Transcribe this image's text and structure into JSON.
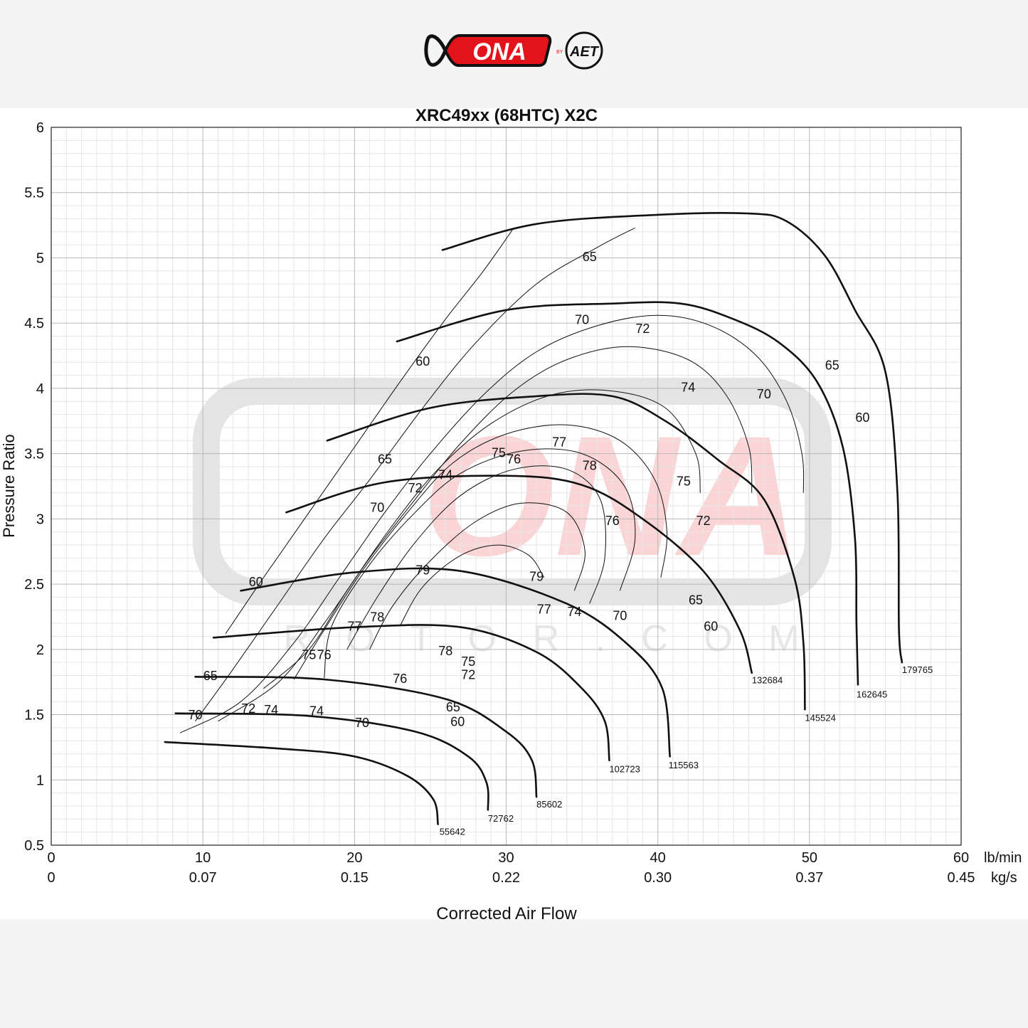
{
  "brand": {
    "logo_text": "ONA",
    "logo_by": "BY",
    "logo_partner": "AET",
    "watermark_text": "ONA",
    "watermark_sub": "R O T O R . C O M",
    "colors": {
      "accent": "#e3131b",
      "dark": "#111111"
    }
  },
  "chart_data": {
    "type": "line",
    "title": "XRC49xx (68HTC) X2C",
    "xlabel": "Corrected Air Flow",
    "ylabel": "Pressure Ratio",
    "xlim": [
      0,
      60
    ],
    "ylim": [
      0.5,
      6
    ],
    "x_unit": "lb/min",
    "x2_unit": "kg/s",
    "x_ticks": [
      0,
      10,
      20,
      30,
      40,
      50,
      60
    ],
    "x2_ticks": [
      "0",
      "0.07",
      "0.15",
      "0.22",
      "0.30",
      "0.37",
      "0.45"
    ],
    "y_ticks": [
      "0.5",
      "1",
      "1.5",
      "2",
      "2.5",
      "3",
      "3.5",
      "4",
      "4.5",
      "5",
      "5.5",
      "6"
    ],
    "grid": true,
    "speed_lines": [
      {
        "label": "55642",
        "points": [
          [
            7.5,
            1.29
          ],
          [
            15,
            1.24
          ],
          [
            20,
            1.18
          ],
          [
            23.5,
            1.03
          ],
          [
            25.2,
            0.85
          ],
          [
            25.5,
            0.66
          ]
        ]
      },
      {
        "label": "72762",
        "points": [
          [
            8.2,
            1.51
          ],
          [
            17,
            1.49
          ],
          [
            24,
            1.37
          ],
          [
            27.5,
            1.18
          ],
          [
            28.7,
            0.98
          ],
          [
            28.8,
            0.77
          ]
        ]
      },
      {
        "label": "85602",
        "points": [
          [
            9.5,
            1.79
          ],
          [
            18,
            1.77
          ],
          [
            26,
            1.62
          ],
          [
            30,
            1.37
          ],
          [
            31.7,
            1.15
          ],
          [
            32,
            0.87
          ]
        ]
      },
      {
        "label": "102723",
        "points": [
          [
            10.7,
            2.09
          ],
          [
            20,
            2.17
          ],
          [
            27,
            2.17
          ],
          [
            32,
            1.98
          ],
          [
            35,
            1.7
          ],
          [
            36.5,
            1.45
          ],
          [
            36.8,
            1.15
          ]
        ]
      },
      {
        "label": "115563",
        "points": [
          [
            12.5,
            2.45
          ],
          [
            20,
            2.59
          ],
          [
            27,
            2.6
          ],
          [
            34,
            2.35
          ],
          [
            38,
            2.04
          ],
          [
            40.3,
            1.7
          ],
          [
            40.8,
            1.18
          ]
        ]
      },
      {
        "label": "132684",
        "points": [
          [
            15.5,
            3.05
          ],
          [
            22,
            3.28
          ],
          [
            30,
            3.33
          ],
          [
            35,
            3.26
          ],
          [
            39,
            3.0
          ],
          [
            43,
            2.6
          ],
          [
            45.4,
            2.15
          ],
          [
            46.2,
            1.82
          ]
        ]
      },
      {
        "label": "145524",
        "points": [
          [
            18.2,
            3.6
          ],
          [
            25,
            3.85
          ],
          [
            32,
            3.94
          ],
          [
            37,
            3.94
          ],
          [
            40.5,
            3.75
          ],
          [
            44,
            3.45
          ],
          [
            47,
            3.15
          ],
          [
            49,
            2.55
          ],
          [
            49.6,
            2.05
          ],
          [
            49.7,
            1.54
          ]
        ]
      },
      {
        "label": "162645",
        "points": [
          [
            22.8,
            4.36
          ],
          [
            30,
            4.6
          ],
          [
            37,
            4.65
          ],
          [
            41.5,
            4.65
          ],
          [
            45,
            4.53
          ],
          [
            48,
            4.35
          ],
          [
            50.5,
            4.05
          ],
          [
            52.2,
            3.55
          ],
          [
            53,
            2.85
          ],
          [
            53.1,
            2.2
          ],
          [
            53.2,
            1.73
          ]
        ]
      },
      {
        "label": "179765",
        "points": [
          [
            25.8,
            5.06
          ],
          [
            32,
            5.26
          ],
          [
            40,
            5.33
          ],
          [
            46,
            5.34
          ],
          [
            48.5,
            5.28
          ],
          [
            51,
            5.02
          ],
          [
            53,
            4.6
          ],
          [
            55,
            4.13
          ],
          [
            55.8,
            3.2
          ],
          [
            55.9,
            2.15
          ],
          [
            56.1,
            1.9
          ]
        ]
      }
    ],
    "efficiency_contours": [
      {
        "label": "60",
        "points": [
          [
            11.5,
            2.12
          ],
          [
            14,
            2.55
          ],
          [
            17,
            3.05
          ],
          [
            20,
            3.55
          ],
          [
            23,
            4.05
          ],
          [
            26,
            4.53
          ],
          [
            28.5,
            4.9
          ],
          [
            30.5,
            5.23
          ]
        ],
        "label_at": [
          13.5,
          2.51
        ]
      },
      {
        "label": "65",
        "points": [
          [
            9.5,
            1.45
          ],
          [
            12,
            1.85
          ],
          [
            15,
            2.35
          ],
          [
            18,
            2.85
          ],
          [
            21,
            3.3
          ],
          [
            24.5,
            3.85
          ],
          [
            28,
            4.35
          ],
          [
            32,
            4.8
          ],
          [
            36,
            5.08
          ],
          [
            38.5,
            5.23
          ]
        ],
        "label_at": [
          10.5,
          1.79
        ]
      },
      {
        "label": "70",
        "points": [
          [
            8.5,
            1.36
          ],
          [
            12.5,
            1.6
          ],
          [
            16,
            2.05
          ],
          [
            19,
            2.55
          ],
          [
            22,
            3.05
          ],
          [
            25,
            3.5
          ],
          [
            28.5,
            3.95
          ],
          [
            32,
            4.28
          ],
          [
            36,
            4.48
          ],
          [
            40,
            4.56
          ],
          [
            43.5,
            4.48
          ],
          [
            46.5,
            4.25
          ],
          [
            48.5,
            3.9
          ],
          [
            49.5,
            3.5
          ],
          [
            49.6,
            3.2
          ]
        ],
        "label_at": [
          9.5,
          1.49
        ]
      },
      {
        "label": "72",
        "points": [
          [
            11,
            1.45
          ],
          [
            15,
            1.75
          ],
          [
            18,
            2.2
          ],
          [
            21,
            2.7
          ],
          [
            24,
            3.15
          ],
          [
            27,
            3.58
          ],
          [
            30.5,
            3.98
          ],
          [
            34,
            4.22
          ],
          [
            38,
            4.32
          ],
          [
            42,
            4.22
          ],
          [
            44.5,
            3.95
          ],
          [
            46,
            3.55
          ],
          [
            46.2,
            3.2
          ]
        ],
        "label_at": [
          13,
          1.54
        ]
      },
      {
        "label": "74",
        "points": [
          [
            14,
            1.7
          ],
          [
            17,
            2.0
          ],
          [
            19.5,
            2.45
          ],
          [
            22.5,
            2.95
          ],
          [
            25.5,
            3.38
          ],
          [
            29,
            3.73
          ],
          [
            33,
            3.95
          ],
          [
            37,
            3.98
          ],
          [
            40.5,
            3.85
          ],
          [
            42.5,
            3.5
          ],
          [
            42.8,
            3.2
          ]
        ],
        "label_at": [
          14.5,
          1.53
        ]
      },
      {
        "label": "75",
        "points": [
          [
            16,
            1.77
          ],
          [
            18,
            2.15
          ],
          [
            20.5,
            2.6
          ],
          [
            23.5,
            3.05
          ],
          [
            26.5,
            3.43
          ],
          [
            30,
            3.65
          ],
          [
            34,
            3.72
          ],
          [
            37.5,
            3.6
          ],
          [
            39.8,
            3.3
          ],
          [
            40.6,
            2.9
          ],
          [
            40.2,
            2.55
          ]
        ],
        "label_at": [
          17,
          1.95
        ]
      },
      {
        "label": "76",
        "points": [
          [
            18,
            1.78
          ],
          [
            18.5,
            2.18
          ],
          [
            21,
            2.65
          ],
          [
            24,
            3.05
          ],
          [
            27,
            3.35
          ],
          [
            31,
            3.52
          ],
          [
            35,
            3.5
          ],
          [
            37.8,
            3.25
          ],
          [
            38.5,
            2.85
          ],
          [
            37.5,
            2.45
          ]
        ],
        "label_at": [
          18,
          1.95
        ]
      },
      {
        "label": "77",
        "points": [
          [
            19.5,
            2.0
          ],
          [
            21.5,
            2.4
          ],
          [
            24,
            2.82
          ],
          [
            27,
            3.18
          ],
          [
            30.5,
            3.38
          ],
          [
            34,
            3.38
          ],
          [
            36.2,
            3.15
          ],
          [
            36.5,
            2.7
          ],
          [
            35.5,
            2.35
          ]
        ],
        "label_at": [
          20,
          2.17
        ]
      },
      {
        "label": "78",
        "points": [
          [
            21,
            2.0
          ],
          [
            22.5,
            2.33
          ],
          [
            25,
            2.68
          ],
          [
            28,
            2.98
          ],
          [
            31,
            3.12
          ],
          [
            34,
            3.05
          ],
          [
            35.2,
            2.75
          ],
          [
            34.5,
            2.45
          ]
        ],
        "label_at": [
          21.5,
          2.24
        ]
      },
      {
        "label": "79",
        "points": [
          [
            23,
            2.18
          ],
          [
            24.5,
            2.48
          ],
          [
            27,
            2.72
          ],
          [
            29.5,
            2.8
          ],
          [
            31.5,
            2.72
          ],
          [
            32.5,
            2.55
          ]
        ],
        "label_at": [
          24.5,
          2.6
        ]
      }
    ],
    "contour_labels": [
      {
        "text": "60",
        "x": 13.5,
        "y": 2.51
      },
      {
        "text": "65",
        "x": 10.5,
        "y": 1.79
      },
      {
        "text": "70",
        "x": 9.5,
        "y": 1.49
      },
      {
        "text": "72",
        "x": 13,
        "y": 1.54
      },
      {
        "text": "74",
        "x": 14.5,
        "y": 1.53
      },
      {
        "text": "75",
        "x": 17,
        "y": 1.95
      },
      {
        "text": "76",
        "x": 18,
        "y": 1.95
      },
      {
        "text": "77",
        "x": 20,
        "y": 2.17
      },
      {
        "text": "78",
        "x": 21.5,
        "y": 2.24
      },
      {
        "text": "79",
        "x": 24.5,
        "y": 2.6
      },
      {
        "text": "60",
        "x": 24.5,
        "y": 4.2
      },
      {
        "text": "65",
        "x": 22,
        "y": 3.45
      },
      {
        "text": "70",
        "x": 21.5,
        "y": 3.08
      },
      {
        "text": "72",
        "x": 24,
        "y": 3.23
      },
      {
        "text": "74",
        "x": 26,
        "y": 3.33
      },
      {
        "text": "75",
        "x": 29.5,
        "y": 3.5
      },
      {
        "text": "76",
        "x": 30.5,
        "y": 3.45
      },
      {
        "text": "77",
        "x": 33.5,
        "y": 3.58
      },
      {
        "text": "78",
        "x": 35.5,
        "y": 3.4
      },
      {
        "text": "79",
        "x": 32,
        "y": 2.55
      },
      {
        "text": "77",
        "x": 32.5,
        "y": 2.3
      },
      {
        "text": "74",
        "x": 34.5,
        "y": 2.28
      },
      {
        "text": "70",
        "x": 37.5,
        "y": 2.25
      },
      {
        "text": "65",
        "x": 42.5,
        "y": 2.37
      },
      {
        "text": "60",
        "x": 43.5,
        "y": 2.17
      },
      {
        "text": "78",
        "x": 26,
        "y": 1.98
      },
      {
        "text": "75",
        "x": 27.5,
        "y": 1.9
      },
      {
        "text": "76",
        "x": 23,
        "y": 1.77
      },
      {
        "text": "72",
        "x": 27.5,
        "y": 1.8
      },
      {
        "text": "74",
        "x": 17.5,
        "y": 1.52
      },
      {
        "text": "70",
        "x": 20.5,
        "y": 1.43
      },
      {
        "text": "65",
        "x": 26.5,
        "y": 1.55
      },
      {
        "text": "60",
        "x": 26.8,
        "y": 1.44
      },
      {
        "text": "76",
        "x": 37,
        "y": 2.98
      },
      {
        "text": "75",
        "x": 41.7,
        "y": 3.28
      },
      {
        "text": "72",
        "x": 43,
        "y": 2.98
      },
      {
        "text": "74",
        "x": 42,
        "y": 4.0
      },
      {
        "text": "72",
        "x": 39,
        "y": 4.45
      },
      {
        "text": "70",
        "x": 35,
        "y": 4.52
      },
      {
        "text": "65",
        "x": 35.5,
        "y": 5.0
      },
      {
        "text": "70",
        "x": 47,
        "y": 3.95
      },
      {
        "text": "65",
        "x": 51.5,
        "y": 4.17
      },
      {
        "text": "60",
        "x": 53.5,
        "y": 3.77
      }
    ],
    "speed_label_positions": [
      {
        "text": "55642",
        "x": 25.6,
        "y": 0.58
      },
      {
        "text": "72762",
        "x": 28.8,
        "y": 0.68
      },
      {
        "text": "85602",
        "x": 32,
        "y": 0.79
      },
      {
        "text": "102723",
        "x": 36.8,
        "y": 1.06
      },
      {
        "text": "115563",
        "x": 40.7,
        "y": 1.09
      },
      {
        "text": "132684",
        "x": 46.2,
        "y": 1.74
      },
      {
        "text": "145524",
        "x": 49.7,
        "y": 1.45
      },
      {
        "text": "162645",
        "x": 53.1,
        "y": 1.63
      },
      {
        "text": "179765",
        "x": 56.1,
        "y": 1.82
      }
    ]
  }
}
